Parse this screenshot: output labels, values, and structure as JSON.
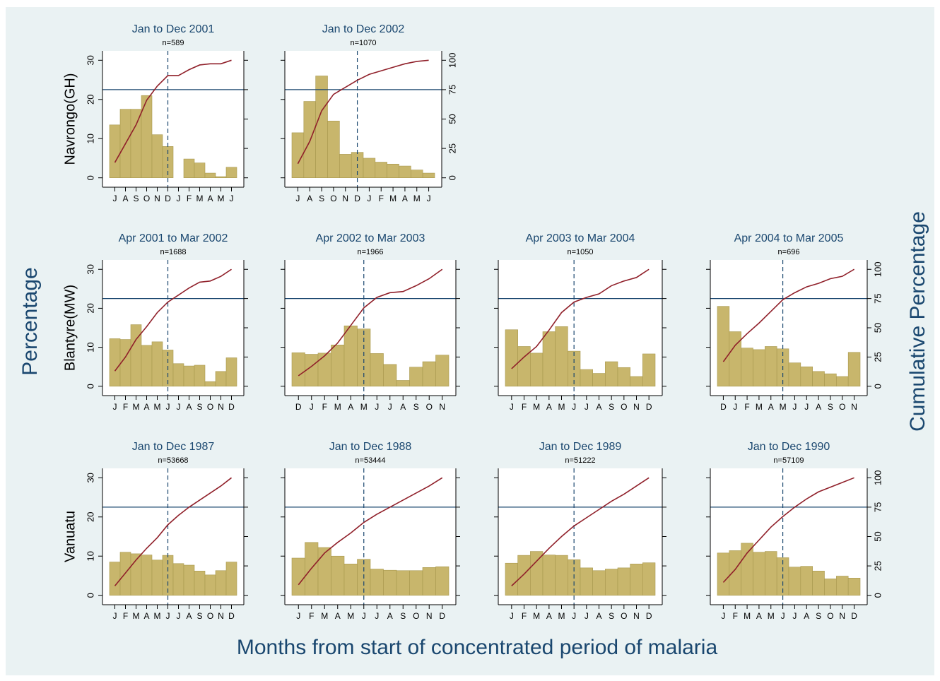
{
  "y_title": "Percentage",
  "y2_title": "Cumulative Percentage",
  "x_title": "Months from start of concentrated period of malaria",
  "chart_data": [
    {
      "type": "bar",
      "title": "Jan to Dec 2001",
      "subtitle": "n=589",
      "ylabel": "Navrongo(GH)",
      "categories": [
        "J",
        "A",
        "S",
        "O",
        "N",
        "D",
        "J",
        "F",
        "M",
        "A",
        "M",
        "J"
      ],
      "values": [
        13.5,
        17.5,
        17.5,
        21,
        11,
        8,
        0,
        4.8,
        3.8,
        1.2,
        0.3,
        2.7
      ],
      "color": "#c8b66c",
      "line": {
        "values": [
          13,
          29,
          45,
          66,
          78,
          87,
          87,
          92,
          96,
          97,
          97,
          100
        ],
        "color": "#90202a",
        "axis": "y2"
      },
      "ylim": [
        -2.4,
        32.4
      ],
      "yticks": [
        0,
        10,
        20,
        30
      ],
      "y2lim": [
        -8,
        108
      ],
      "y2ticks": [
        0,
        25,
        50,
        75,
        100
      ],
      "hline": 75,
      "vline": 5
    },
    {
      "type": "bar",
      "title": "Jan to Dec 2002",
      "subtitle": "n=1070",
      "categories": [
        "J",
        "A",
        "S",
        "O",
        "N",
        "D",
        "J",
        "F",
        "M",
        "A",
        "M",
        "J"
      ],
      "values": [
        11.5,
        19.5,
        26,
        14.5,
        6,
        6.5,
        5,
        4,
        3.5,
        3,
        2,
        1.2
      ],
      "color": "#c8b66c",
      "line": {
        "values": [
          12,
          31,
          57,
          71,
          77,
          83,
          88,
          91,
          94,
          97,
          99,
          100
        ],
        "color": "#90202a",
        "axis": "y2"
      },
      "ylim": [
        -2.4,
        32.4
      ],
      "yticks": [
        0,
        10,
        20,
        30
      ],
      "y2lim": [
        -8,
        108
      ],
      "y2ticks": [
        0,
        25,
        50,
        75,
        100
      ],
      "hline": 75,
      "vline": 5
    },
    {
      "type": "bar",
      "title": "Apr 2001 to Mar 2002",
      "subtitle": "n=1688",
      "ylabel": "Blantyre(MW)",
      "categories": [
        "J",
        "F",
        "M",
        "A",
        "M",
        "J",
        "J",
        "A",
        "S",
        "O",
        "N",
        "D"
      ],
      "values": [
        12.2,
        12,
        15.8,
        10.5,
        11.4,
        9.3,
        5.8,
        5.2,
        5.4,
        1.2,
        3.8,
        7.3
      ],
      "color": "#c8b66c",
      "line": {
        "values": [
          13,
          25,
          40,
          51,
          63,
          72,
          78,
          84,
          89,
          90,
          94,
          100
        ],
        "color": "#90202a",
        "axis": "y2"
      },
      "ylim": [
        -2.4,
        32.4
      ],
      "yticks": [
        0,
        10,
        20,
        30
      ],
      "y2lim": [
        -8,
        108
      ],
      "y2ticks": [
        0,
        25,
        50,
        75,
        100
      ],
      "hline": 75,
      "vline": 5
    },
    {
      "type": "bar",
      "title": "Apr 2002 to Mar 2003",
      "subtitle": "n=1966",
      "categories": [
        "D",
        "J",
        "F",
        "M",
        "A",
        "M",
        "J",
        "J",
        "A",
        "S",
        "O",
        "N"
      ],
      "values": [
        8.6,
        8.2,
        8.5,
        10.6,
        15.5,
        14.7,
        8.4,
        5.6,
        1.5,
        4.9,
        6.3,
        8.0
      ],
      "color": "#c8b66c",
      "line": {
        "values": [
          9,
          17,
          26,
          37,
          52,
          67,
          76,
          80,
          81,
          86,
          92,
          100
        ],
        "color": "#90202a",
        "axis": "y2"
      },
      "ylim": [
        -2.4,
        32.4
      ],
      "yticks": [
        0,
        10,
        20,
        30
      ],
      "y2lim": [
        -8,
        108
      ],
      "y2ticks": [
        0,
        25,
        50,
        75,
        100
      ],
      "hline": 75,
      "vline": 5
    },
    {
      "type": "bar",
      "title": "Apr 2003 to Mar 2004",
      "subtitle": "n=1050",
      "categories": [
        "J",
        "F",
        "M",
        "A",
        "M",
        "J",
        "J",
        "A",
        "S",
        "O",
        "N",
        "D"
      ],
      "values": [
        14.5,
        10.2,
        8.5,
        14,
        15.3,
        9,
        4.3,
        3.3,
        6.3,
        4.8,
        2.5,
        8.3
      ],
      "color": "#c8b66c",
      "line": {
        "values": [
          15,
          25,
          34,
          48,
          63,
          72,
          76,
          79,
          86,
          90,
          93,
          100
        ],
        "color": "#90202a",
        "axis": "y2"
      },
      "ylim": [
        -2.4,
        32.4
      ],
      "yticks": [
        0,
        10,
        20,
        30
      ],
      "y2lim": [
        -8,
        108
      ],
      "y2ticks": [
        0,
        25,
        50,
        75,
        100
      ],
      "hline": 75,
      "vline": 5
    },
    {
      "type": "bar",
      "title": "Apr 2004 to Mar 2005",
      "subtitle": "n=696",
      "categories": [
        "D",
        "J",
        "F",
        "M",
        "A",
        "M",
        "J",
        "J",
        "A",
        "S",
        "O",
        "N"
      ],
      "values": [
        20.5,
        14,
        9.8,
        9.4,
        10.2,
        9.6,
        6,
        5,
        3.8,
        3.2,
        2.5,
        8.7
      ],
      "color": "#c8b66c",
      "line": {
        "values": [
          21,
          35,
          45,
          54,
          64,
          74,
          80,
          85,
          88,
          92,
          94,
          100
        ],
        "color": "#90202a",
        "axis": "y2"
      },
      "ylim": [
        -2.4,
        32.4
      ],
      "yticks": [
        0,
        10,
        20,
        30
      ],
      "y2lim": [
        -8,
        108
      ],
      "y2ticks": [
        0,
        25,
        50,
        75,
        100
      ],
      "hline": 75,
      "vline": 5
    },
    {
      "type": "bar",
      "title": "Jan to Dec 1987",
      "subtitle": "n=53668",
      "ylabel": "Vanuatu",
      "categories": [
        "J",
        "F",
        "M",
        "A",
        "M",
        "J",
        "J",
        "A",
        "S",
        "O",
        "N",
        "D"
      ],
      "values": [
        8.5,
        11,
        10.6,
        10.3,
        9,
        10.2,
        8.1,
        7.7,
        6.2,
        5.2,
        6.3,
        8.5
      ],
      "color": "#c8b66c",
      "line": {
        "values": [
          8,
          19,
          30,
          40,
          49,
          60,
          68,
          75,
          81,
          87,
          93,
          100
        ],
        "color": "#90202a",
        "axis": "y2"
      },
      "ylim": [
        -2.4,
        32.4
      ],
      "yticks": [
        0,
        10,
        20,
        30
      ],
      "y2lim": [
        -8,
        108
      ],
      "y2ticks": [
        0,
        25,
        50,
        75,
        100
      ],
      "hline": 75,
      "vline": 5
    },
    {
      "type": "bar",
      "title": "Jan to Dec 1988",
      "subtitle": "n=53444",
      "categories": [
        "J",
        "F",
        "M",
        "A",
        "M",
        "J",
        "J",
        "A",
        "S",
        "O",
        "N",
        "D"
      ],
      "values": [
        9.5,
        13.5,
        12.2,
        10,
        8,
        9.2,
        6.7,
        6.4,
        6.3,
        6.3,
        7.1,
        7.3
      ],
      "color": "#c8b66c",
      "line": {
        "values": [
          9,
          23,
          36,
          45,
          53,
          62,
          69,
          75,
          81,
          87,
          93,
          100
        ],
        "color": "#90202a",
        "axis": "y2"
      },
      "ylim": [
        -2.4,
        32.4
      ],
      "yticks": [
        0,
        10,
        20,
        30
      ],
      "y2lim": [
        -8,
        108
      ],
      "y2ticks": [
        0,
        25,
        50,
        75,
        100
      ],
      "hline": 75,
      "vline": 5
    },
    {
      "type": "bar",
      "title": "Jan to Dec 1989",
      "subtitle": "n=51222",
      "categories": [
        "J",
        "F",
        "M",
        "A",
        "M",
        "J",
        "J",
        "A",
        "S",
        "O",
        "N",
        "D"
      ],
      "values": [
        8.2,
        10.2,
        11.2,
        10.3,
        10.2,
        9.1,
        7,
        6.3,
        6.7,
        7,
        8,
        8.3
      ],
      "color": "#c8b66c",
      "line": {
        "values": [
          8,
          18,
          29,
          40,
          50,
          59,
          66,
          73,
          80,
          86,
          93,
          100
        ],
        "color": "#90202a",
        "axis": "y2"
      },
      "ylim": [
        -2.4,
        32.4
      ],
      "yticks": [
        0,
        10,
        20,
        30
      ],
      "y2lim": [
        -8,
        108
      ],
      "y2ticks": [
        0,
        25,
        50,
        75,
        100
      ],
      "hline": 75,
      "vline": 5
    },
    {
      "type": "bar",
      "title": "Jan to Dec 1990",
      "subtitle": "n=57109",
      "categories": [
        "J",
        "F",
        "M",
        "A",
        "M",
        "J",
        "J",
        "A",
        "S",
        "O",
        "N",
        "D"
      ],
      "values": [
        10.8,
        11.4,
        13.3,
        11,
        11.2,
        9.6,
        7.2,
        7.4,
        6.2,
        4.2,
        4.9,
        4.4
      ],
      "color": "#c8b66c",
      "line": {
        "values": [
          11,
          22,
          36,
          47,
          58,
          67,
          75,
          82,
          88,
          92,
          96,
          100
        ],
        "color": "#90202a",
        "axis": "y2"
      },
      "ylim": [
        -2.4,
        32.4
      ],
      "yticks": [
        0,
        10,
        20,
        30
      ],
      "y2lim": [
        -8,
        108
      ],
      "y2ticks": [
        0,
        25,
        50,
        75,
        100
      ],
      "hline": 75,
      "vline": 5
    }
  ]
}
